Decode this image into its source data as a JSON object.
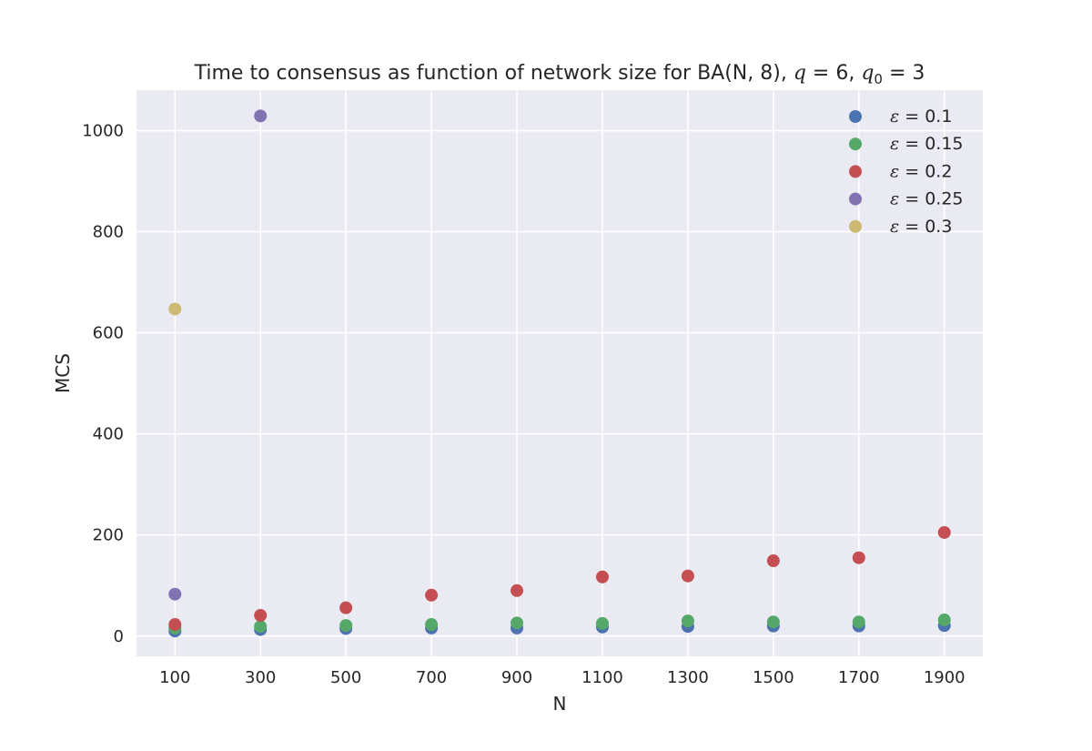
{
  "chart_data": {
    "type": "scatter",
    "title_parts": {
      "prefix": "Time to consensus as function of network size for BA(N, 8), ",
      "q_symbol": "q",
      "q_value": " = 6, ",
      "q0_symbol": "q",
      "q0_sub": "0",
      "q0_value": " = 3"
    },
    "xlabel": "N",
    "ylabel": "MCS",
    "x_ticks": [
      100,
      300,
      500,
      700,
      900,
      1100,
      1300,
      1500,
      1700,
      1900
    ],
    "y_ticks": [
      0,
      200,
      400,
      600,
      800,
      1000
    ],
    "xlim": [
      10,
      1990
    ],
    "ylim": [
      -40,
      1080
    ],
    "grid": true,
    "legend_position": "top-right",
    "series": [
      {
        "name": "ε = 0.1",
        "symbol": "ε",
        "value_label": " = 0.1",
        "color": "#4c72b0",
        "x": [
          100,
          300,
          500,
          700,
          900,
          1100,
          1300,
          1500,
          1700,
          1900
        ],
        "y": [
          10,
          13,
          15,
          16,
          16,
          18,
          19,
          20,
          20,
          21
        ]
      },
      {
        "name": "ε = 0.15",
        "symbol": "ε",
        "value_label": " = 0.15",
        "color": "#55a868",
        "x": [
          100,
          300,
          500,
          700,
          900,
          1100,
          1300,
          1500,
          1700,
          1900
        ],
        "y": [
          16,
          19,
          21,
          23,
          26,
          25,
          30,
          28,
          28,
          32
        ]
      },
      {
        "name": "ε = 0.2",
        "symbol": "ε",
        "value_label": " = 0.2",
        "color": "#c44e52",
        "x": [
          100,
          300,
          500,
          700,
          900,
          1100,
          1300,
          1500,
          1700,
          1900
        ],
        "y": [
          23,
          41,
          56,
          81,
          90,
          117,
          119,
          149,
          155,
          205
        ]
      },
      {
        "name": "ε = 0.25",
        "symbol": "ε",
        "value_label": " = 0.25",
        "color": "#8172b2",
        "x": [
          100,
          300
        ],
        "y": [
          83,
          1029
        ]
      },
      {
        "name": "ε = 0.3",
        "symbol": "ε",
        "value_label": " = 0.3",
        "color": "#ccb974",
        "x": [
          100
        ],
        "y": [
          647
        ]
      }
    ]
  },
  "colors": {
    "plot_background": "#eaeaf2",
    "grid": "#ffffff",
    "text": "#262626"
  }
}
